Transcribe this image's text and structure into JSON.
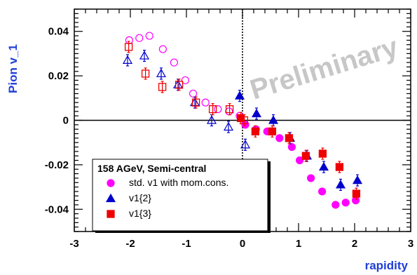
{
  "chart_data": {
    "type": "scatter",
    "title": "",
    "xlabel": "rapidity",
    "ylabel": "Pion v_1",
    "xlim": [
      -3,
      3
    ],
    "ylim": [
      -0.05,
      0.05
    ],
    "x_ticks": [
      -3,
      -2,
      -1,
      0,
      1,
      2,
      3
    ],
    "x_tick_labels": [
      "-3",
      "-2",
      "-1",
      "0",
      "1",
      "2",
      "3"
    ],
    "y_ticks": [
      -0.04,
      -0.02,
      0,
      0.02,
      0.04
    ],
    "y_tick_labels": [
      "-0.04",
      "-0.02",
      "0",
      "0.02",
      "0.04"
    ],
    "watermark": "Preliminary",
    "legend": {
      "title": "158 AGeV, Semi-central",
      "placement": "bottom-left",
      "entries": [
        "std. v1 with mom.cons.",
        "v1{2}",
        "v1{3}"
      ]
    },
    "series": [
      {
        "name": "std. v1 with mom.cons.",
        "marker": "circle",
        "color": "#ff00ff",
        "points": [
          [
            -2.02,
            0.036
          ],
          [
            -1.84,
            0.037
          ],
          [
            -1.66,
            0.038
          ],
          [
            -1.42,
            0.032
          ],
          [
            -1.22,
            0.026
          ],
          [
            -1.02,
            0.018
          ],
          [
            -0.88,
            0.012
          ],
          [
            -0.66,
            0.008
          ],
          [
            -0.44,
            0.005
          ],
          [
            -0.24,
            0.004
          ],
          [
            -0.05,
            0.002
          ]
        ],
        "filled_points": [
          [
            0.05,
            -0.002
          ],
          [
            0.24,
            -0.004
          ],
          [
            0.44,
            -0.005
          ],
          [
            0.66,
            -0.008
          ],
          [
            0.88,
            -0.012
          ],
          [
            1.02,
            -0.018
          ],
          [
            1.22,
            -0.026
          ],
          [
            1.42,
            -0.032
          ],
          [
            1.66,
            -0.038
          ],
          [
            1.84,
            -0.037
          ],
          [
            2.02,
            -0.036
          ]
        ]
      },
      {
        "name": "v1{2}",
        "marker": "triangle",
        "color": "#0000cc",
        "points": [
          [
            -2.05,
            0.027
          ],
          [
            -1.75,
            0.029
          ],
          [
            -1.45,
            0.021
          ],
          [
            -1.15,
            0.016
          ],
          [
            -0.85,
            0.008
          ],
          [
            -0.55,
            0.0
          ],
          [
            -0.25,
            -0.003
          ],
          [
            0.05,
            -0.011
          ]
        ],
        "filled_points": [
          [
            -0.05,
            0.011
          ],
          [
            0.25,
            0.003
          ],
          [
            0.55,
            0.0
          ],
          [
            0.85,
            -0.008
          ],
          [
            1.15,
            -0.016
          ],
          [
            1.45,
            -0.021
          ],
          [
            1.75,
            -0.029
          ],
          [
            2.05,
            -0.027
          ]
        ]
      },
      {
        "name": "v1{3}",
        "marker": "square",
        "color": "#ee0000",
        "points": [
          [
            -2.03,
            0.033
          ],
          [
            -1.73,
            0.021
          ],
          [
            -1.43,
            0.015
          ],
          [
            -1.13,
            0.016
          ],
          [
            -0.83,
            0.008
          ],
          [
            -0.53,
            0.005
          ],
          [
            -0.23,
            0.005
          ],
          [
            0.03,
            0.0
          ]
        ],
        "filled_points": [
          [
            -0.03,
            0.001
          ],
          [
            0.23,
            -0.005
          ],
          [
            0.53,
            -0.005
          ],
          [
            0.83,
            -0.008
          ],
          [
            1.13,
            -0.016
          ],
          [
            1.43,
            -0.015
          ],
          [
            1.73,
            -0.021
          ],
          [
            2.03,
            -0.033
          ]
        ]
      }
    ]
  }
}
